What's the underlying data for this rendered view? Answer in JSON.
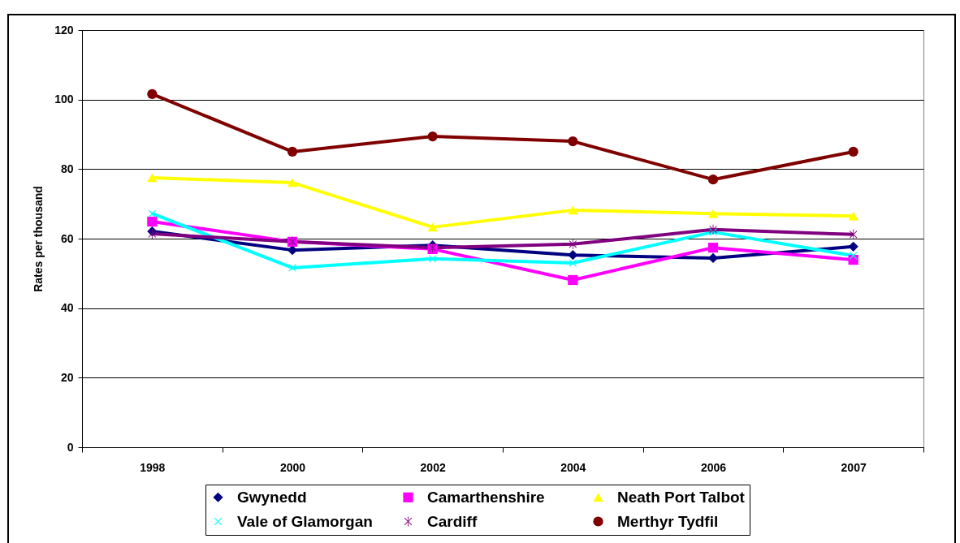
{
  "chart_data": {
    "type": "line",
    "ylabel": "Rates per thousand",
    "categories": [
      "1998",
      "2000",
      "2002",
      "2004",
      "2006",
      "2007"
    ],
    "series": [
      {
        "name": "Gwynedd",
        "color": "#000080",
        "marker": "diamond",
        "values": [
          62.1,
          56.7,
          58.1,
          55.3,
          54.4,
          57.7
        ]
      },
      {
        "name": "Camarthenshire",
        "color": "#ff00ff",
        "marker": "square",
        "values": [
          64.9,
          59.1,
          57.0,
          48.1,
          57.4,
          53.9
        ]
      },
      {
        "name": "Neath Port Talbot",
        "color": "#ffff00",
        "marker": "triangle",
        "values": [
          77.5,
          76.1,
          63.3,
          68.2,
          67.2,
          66.5
        ]
      },
      {
        "name": "Vale of Glamorgan",
        "color": "#00ffff",
        "marker": "cross",
        "values": [
          67.2,
          51.6,
          54.2,
          53.0,
          61.9,
          55.1
        ]
      },
      {
        "name": "Cardiff",
        "color": "#800080",
        "marker": "star",
        "values": [
          61.4,
          59.1,
          57.4,
          58.4,
          62.6,
          61.2
        ]
      },
      {
        "name": "Merthyr Tydfil",
        "color": "#800000",
        "marker": "circle",
        "values": [
          101.6,
          85.0,
          89.4,
          88.0,
          77.0,
          85.0
        ]
      }
    ],
    "ylim": [
      0,
      120
    ],
    "yticks": [
      0,
      20,
      40,
      60,
      80,
      100,
      120
    ],
    "grid": "y",
    "legend": "bottom"
  }
}
